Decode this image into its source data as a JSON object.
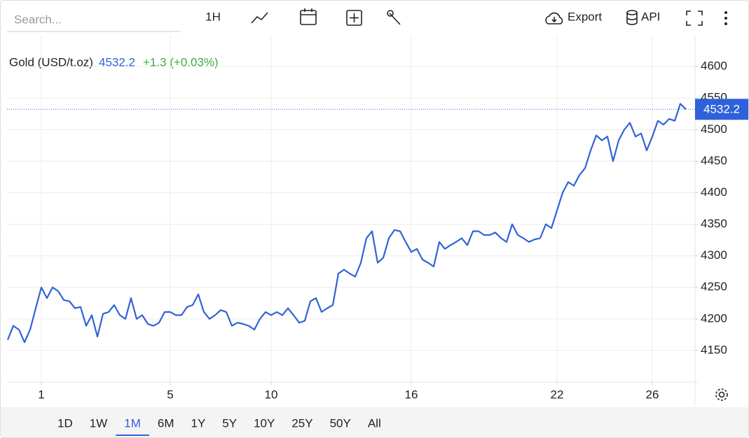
{
  "toolbar": {
    "search_placeholder": "Search...",
    "interval": "1H",
    "export": "Export",
    "api": "API"
  },
  "ranges": {
    "items": [
      "1D",
      "1W",
      "1M",
      "6M",
      "1Y",
      "5Y",
      "10Y",
      "25Y",
      "50Y",
      "All"
    ],
    "active": "1M"
  },
  "chart_data": {
    "type": "line",
    "last_price": 4532.2,
    "change": "+1.3 (+0.03%)",
    "categories": [
      null,
      null,
      null,
      null,
      null,
      null,
      "1",
      null,
      null,
      null,
      null,
      null,
      null,
      null,
      null,
      null,
      null,
      null,
      null,
      null,
      null,
      null,
      null,
      null,
      null,
      null,
      null,
      null,
      null,
      "5",
      null,
      null,
      null,
      null,
      null,
      null,
      null,
      null,
      null,
      null,
      null,
      null,
      null,
      null,
      null,
      null,
      null,
      "10",
      null,
      null,
      null,
      null,
      null,
      null,
      null,
      null,
      null,
      null,
      null,
      null,
      null,
      null,
      null,
      null,
      null,
      null,
      null,
      null,
      null,
      null,
      null,
      null,
      "16",
      null,
      null,
      null,
      null,
      null,
      null,
      null,
      null,
      null,
      null,
      null,
      null,
      null,
      null,
      null,
      null,
      null,
      null,
      null,
      null,
      null,
      null,
      null,
      null,
      null,
      "22",
      null,
      null,
      null,
      null,
      null,
      null,
      null,
      null,
      null,
      null,
      null,
      null,
      null,
      null,
      null,
      null,
      "26",
      null,
      null,
      null,
      null,
      null,
      null
    ],
    "series": [
      {
        "name": "Gold (USD/t.oz)",
        "color": "#3163d6",
        "values": [
          4167,
          4189,
          4183,
          4163,
          4183,
          4217,
          4250,
          4233,
          4250,
          4244,
          4230,
          4228,
          4217,
          4219,
          4189,
          4206,
          4172,
          4208,
          4211,
          4222,
          4206,
          4200,
          4233,
          4200,
          4206,
          4192,
          4189,
          4194,
          4211,
          4211,
          4206,
          4206,
          4219,
          4222,
          4239,
          4211,
          4200,
          4206,
          4214,
          4211,
          4189,
          4194,
          4192,
          4189,
          4183,
          4200,
          4211,
          4206,
          4211,
          4206,
          4217,
          4206,
          4194,
          4197,
          4228,
          4233,
          4211,
          4217,
          4222,
          4272,
          4278,
          4272,
          4267,
          4289,
          4328,
          4339,
          4289,
          4297,
          4328,
          4341,
          4339,
          4322,
          4306,
          4311,
          4294,
          4289,
          4283,
          4322,
          4311,
          4317,
          4322,
          4328,
          4317,
          4339,
          4339,
          4333,
          4333,
          4337,
          4328,
          4322,
          4350,
          4333,
          4328,
          4322,
          4326,
          4328,
          4350,
          4344,
          4372,
          4400,
          4417,
          4411,
          4428,
          4439,
          4467,
          4491,
          4483,
          4489,
          4450,
          4483,
          4500,
          4511,
          4489,
          4494,
          4467,
          4489,
          4514,
          4508,
          4517,
          4514,
          4541,
          4532.2
        ]
      }
    ],
    "ylim": [
      4100,
      4650
    ],
    "yticks": [
      4150,
      4200,
      4250,
      4300,
      4350,
      4400,
      4450,
      4500,
      4550,
      4600
    ],
    "grid": true,
    "y_axis_side": "right"
  }
}
